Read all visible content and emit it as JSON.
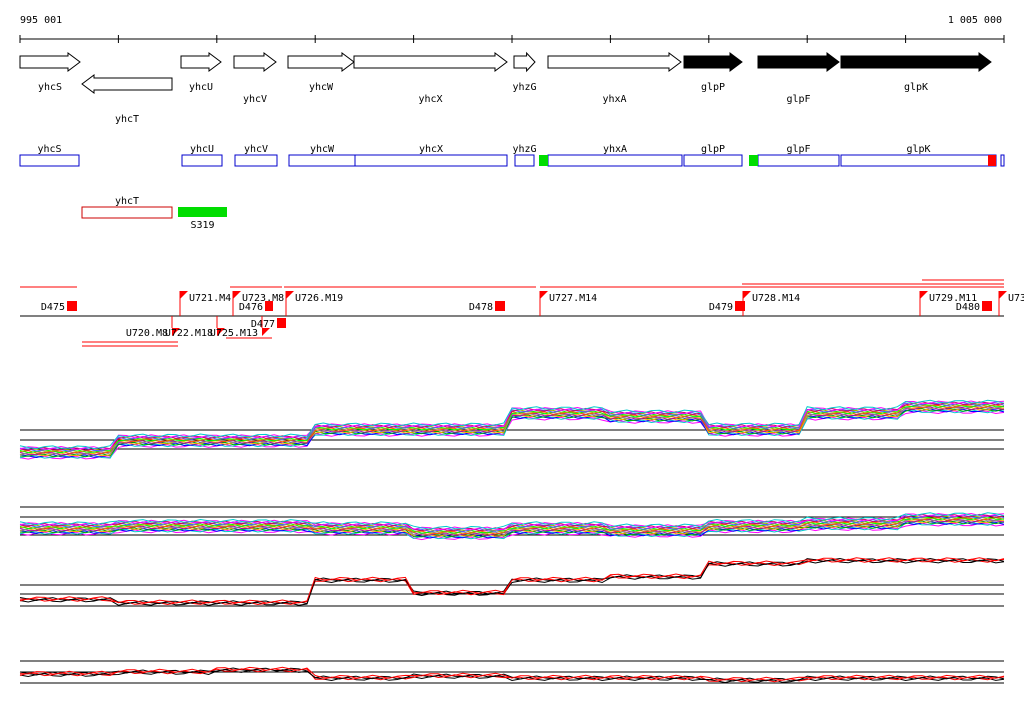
{
  "coords": {
    "start_label": "995 001",
    "end_label": "1 005 000"
  },
  "colors": {
    "forward_gene": "#000000",
    "reverse_gene": "#ffffff",
    "cds_box": "#0000cc",
    "rev_box": "#cc0000",
    "promoter": "#00dd00",
    "terminator": "#ff0000",
    "segment": "#ff0000"
  },
  "genes": [
    {
      "name": "yhcS",
      "strand": "+",
      "filled": false,
      "start": 0,
      "end": 60
    },
    {
      "name": "yhcT",
      "strand": "-",
      "filled": false,
      "start": 62,
      "end": 152
    },
    {
      "name": "yhcU",
      "strand": "+",
      "filled": false,
      "start": 161,
      "end": 201
    },
    {
      "name": "yhcV",
      "strand": "+",
      "filled": false,
      "start": 214,
      "end": 256
    },
    {
      "name": "yhcW",
      "strand": "+",
      "filled": false,
      "start": 268,
      "end": 334
    },
    {
      "name": "yhcX",
      "strand": "+",
      "filled": false,
      "start": 334,
      "end": 487
    },
    {
      "name": "yhzG",
      "strand": "+",
      "filled": false,
      "start": 494,
      "end": 515
    },
    {
      "name": "yhxA",
      "strand": "+",
      "filled": false,
      "start": 528,
      "end": 661
    },
    {
      "name": "glpP",
      "strand": "+",
      "filled": true,
      "start": 664,
      "end": 722
    },
    {
      "name": "glpF",
      "strand": "+",
      "filled": true,
      "start": 738,
      "end": 819
    },
    {
      "name": "glpK",
      "strand": "+",
      "filled": true,
      "start": 821,
      "end": 971
    }
  ],
  "annotation_boxes": [
    {
      "label": "yhcS",
      "start": 0,
      "end": 59,
      "strand": "+"
    },
    {
      "label": "yhcU",
      "start": 162,
      "end": 202,
      "strand": "+"
    },
    {
      "label": "yhcV",
      "start": 215,
      "end": 257,
      "strand": "+"
    },
    {
      "label": "yhcW",
      "start": 269,
      "end": 335,
      "strand": "+"
    },
    {
      "label": "yhcX",
      "start": 335,
      "end": 487,
      "strand": "+"
    },
    {
      "label": "yhzG",
      "start": 495,
      "end": 514,
      "strand": "+"
    },
    {
      "label": "yhxA",
      "start": 528,
      "end": 662,
      "strand": "+"
    },
    {
      "label": "glpP",
      "start": 664,
      "end": 722,
      "strand": "+"
    },
    {
      "label": "glpF",
      "start": 738,
      "end": 819,
      "strand": "+"
    },
    {
      "label": "glpK",
      "start": 821,
      "end": 976,
      "strand": "+"
    },
    {
      "label": "yhcT",
      "start": 62,
      "end": 152,
      "strand": "-"
    }
  ],
  "features": [
    {
      "label": "",
      "kind": "promoter",
      "start": 519,
      "end": 528
    },
    {
      "label": "",
      "kind": "promoter",
      "start": 729,
      "end": 738
    },
    {
      "label": "",
      "kind": "terminator",
      "start": 968,
      "end": 976
    },
    {
      "label": "S319",
      "kind": "promoter",
      "start": 158,
      "end": 207
    }
  ],
  "segments": [
    {
      "label": "D475",
      "start": 47,
      "end": 57
    },
    {
      "label": "U720.M8",
      "start": 152,
      "end": 160
    },
    {
      "label": "U721.M4",
      "start": 160,
      "end": 170
    },
    {
      "label": "U722.M18",
      "start": 197,
      "end": 207
    },
    {
      "label": "U723.M8",
      "start": 213,
      "end": 221
    },
    {
      "label": "D476",
      "start": 245,
      "end": 253
    },
    {
      "label": "U725.M13",
      "start": 242,
      "end": 252
    },
    {
      "label": "D477",
      "start": 257,
      "end": 266
    },
    {
      "label": "U726.M19",
      "start": 266,
      "end": 273
    },
    {
      "label": "D478",
      "start": 475,
      "end": 485
    },
    {
      "label": "U727.M14",
      "start": 520,
      "end": 528
    },
    {
      "label": "D479",
      "start": 715,
      "end": 725
    },
    {
      "label": "U728.M14",
      "start": 723,
      "end": 732
    },
    {
      "label": "U729.M11",
      "start": 900,
      "end": 908
    },
    {
      "label": "D480",
      "start": 962,
      "end": 972
    },
    {
      "label": "U73",
      "start": 979,
      "end": 986
    }
  ],
  "expression_panels": [
    {
      "name": "panel-1",
      "levels": [
        0,
        0.18,
        0.18,
        0.35,
        0.35,
        0.6,
        0.55,
        0.35,
        0.6,
        0.7
      ]
    },
    {
      "name": "panel-2",
      "levels": [
        0.2,
        0.25,
        0.25,
        0.2,
        0.1,
        0.2,
        0.15,
        0.25,
        0.3,
        0.4
      ]
    },
    {
      "name": "panel-3",
      "levels": [
        0.1,
        0.05,
        0.05,
        0.4,
        0.2,
        0.4,
        0.45,
        0.65,
        0.7,
        0.7
      ]
    },
    {
      "name": "panel-4",
      "levels": [
        0.3,
        0.35,
        0.4,
        0.2,
        0.25,
        0.2,
        0.2,
        0.15,
        0.2,
        0.2
      ]
    }
  ]
}
